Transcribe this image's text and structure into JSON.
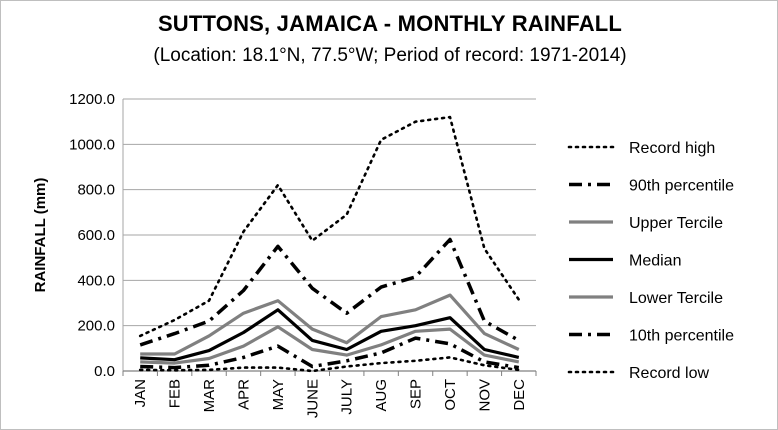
{
  "chart_data": {
    "type": "line",
    "title": "SUTTONS, JAMAICA - MONTHLY RAINFALL",
    "subtitle": "(Location: 18.1°N, 77.5°W; Period of record: 1971-2014)",
    "xlabel": "",
    "ylabel": "RAINFALL (mm)",
    "ylim": [
      0,
      1200
    ],
    "yticks": [
      0,
      200,
      400,
      600,
      800,
      1000,
      1200
    ],
    "ytick_labels": [
      "0.0",
      "200.0",
      "400.0",
      "600.0",
      "800.0",
      "1000.0",
      "1200.0"
    ],
    "categories": [
      "JAN",
      "FEB",
      "MAR",
      "APR",
      "MAY",
      "JUNE",
      "JULY",
      "AUG",
      "SEP",
      "OCT",
      "NOV",
      "DEC"
    ],
    "grid": "horizontal",
    "legend_position": "right",
    "series": [
      {
        "name": "Record high",
        "style": "dotted",
        "color": "#000000",
        "values": [
          155,
          225,
          310,
          615,
          820,
          575,
          690,
          1020,
          1100,
          1120,
          540,
          315
        ]
      },
      {
        "name": "90th percentile",
        "style": "dashdot",
        "color": "#000000",
        "values": [
          115,
          165,
          220,
          355,
          550,
          365,
          255,
          370,
          415,
          580,
          220,
          135
        ]
      },
      {
        "name": "Upper Tercile",
        "style": "solid",
        "color": "#808080",
        "values": [
          75,
          75,
          155,
          255,
          310,
          185,
          125,
          240,
          270,
          335,
          165,
          95
        ]
      },
      {
        "name": "Median",
        "style": "solid",
        "color": "#000000",
        "values": [
          58,
          50,
          90,
          170,
          270,
          135,
          95,
          175,
          200,
          235,
          95,
          60
        ]
      },
      {
        "name": "Lower Tercile",
        "style": "solid",
        "color": "#808080",
        "values": [
          40,
          35,
          55,
          110,
          195,
          95,
          70,
          115,
          175,
          185,
          70,
          40
        ]
      },
      {
        "name": "10th percentile",
        "style": "dashdot",
        "color": "#000000",
        "values": [
          20,
          15,
          25,
          60,
          110,
          20,
          45,
          80,
          145,
          120,
          40,
          15
        ]
      },
      {
        "name": "Record low",
        "style": "dotted",
        "color": "#000000",
        "values": [
          5,
          3,
          5,
          15,
          15,
          0,
          20,
          35,
          45,
          60,
          25,
          5
        ]
      }
    ]
  }
}
